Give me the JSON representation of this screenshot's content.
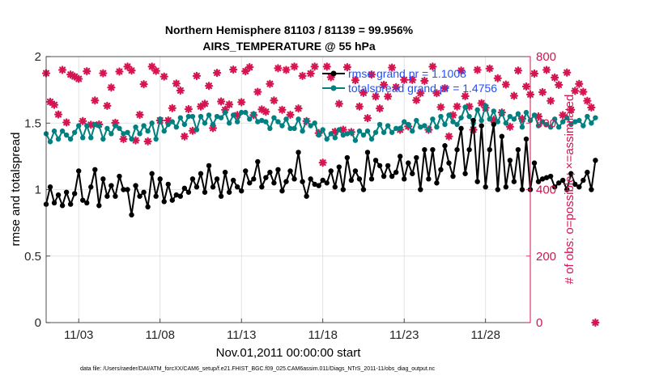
{
  "chart_data": {
    "type": "line",
    "title": "Northern Hemisphere 81103 / 81139 = 99.956%",
    "subtitle": "AIRS_TEMPERATURE @ 55 hPa",
    "xlabel": "Nov.01,2011 00:00:00 start",
    "ylabel": "rmse and totalspread",
    "y2label": "# of obs: o=possible; ×=assimilated",
    "x_ticks": [
      "11/03",
      "11/08",
      "11/13",
      "11/18",
      "11/23",
      "11/28"
    ],
    "x_tick_days": [
      3,
      8,
      13,
      18,
      23,
      28
    ],
    "xlim": [
      1.0,
      30.75
    ],
    "ylim": [
      0,
      2
    ],
    "y_ticks": [
      "0",
      "0.5",
      "1",
      "1.5",
      "2"
    ],
    "y2lim": [
      0,
      800
    ],
    "y2_ticks": [
      "0",
      "200",
      "400",
      "600",
      "800"
    ],
    "x_step_days": 0.25,
    "grid": true,
    "legend_position": "top-right",
    "colors": {
      "rmse": "#000000",
      "totalspread": "#008080",
      "obs": "#d6144f",
      "legend_text": "#1f4fff"
    },
    "series": [
      {
        "name": "rmse grand pr = 1.1008",
        "axis": "left",
        "values": [
          0.89,
          1.02,
          0.9,
          0.96,
          0.88,
          0.98,
          0.89,
          0.97,
          1.14,
          0.92,
          0.9,
          1.02,
          1.15,
          0.88,
          1.08,
          0.95,
          1.03,
          0.95,
          1.1,
          1.0,
          1.0,
          0.81,
          1.03,
          0.95,
          0.98,
          0.87,
          1.12,
          0.95,
          1.08,
          0.91,
          1.04,
          0.92,
          0.96,
          0.95,
          1.01,
          0.98,
          1.08,
          1.02,
          1.12,
          0.98,
          1.18,
          1.02,
          1.08,
          0.95,
          1.13,
          0.98,
          1.07,
          1.02,
          0.99,
          1.14,
          1.05,
          1.08,
          1.21,
          1.02,
          1.09,
          1.13,
          1.05,
          1.15,
          0.99,
          1.06,
          1.14,
          1.08,
          1.28,
          1.06,
          0.95,
          1.08,
          1.04,
          1.03,
          1.07,
          1.05,
          1.14,
          1.02,
          1.17,
          1.0,
          1.24,
          1.07,
          1.14,
          1.08,
          1.0,
          1.28,
          1.08,
          1.22,
          1.18,
          1.1,
          1.18,
          1.1,
          1.13,
          1.25,
          1.08,
          1.2,
          1.12,
          1.24,
          1.0,
          1.3,
          1.08,
          1.3,
          1.05,
          1.15,
          1.33,
          1.2,
          1.1,
          1.3,
          1.46,
          1.12,
          1.3,
          1.52,
          1.06,
          1.48,
          1.02,
          1.3,
          1.49,
          1.0,
          1.4,
          1.02,
          1.22,
          1.06,
          1.3,
          1.0,
          1.38,
          1.0,
          1.2,
          1.06,
          1.08,
          1.09,
          1.1,
          1.02,
          1.05,
          1.07,
          1.0,
          1.12,
          1.04,
          1.02,
          1.07,
          1.13,
          1.0,
          1.22
        ]
      },
      {
        "name": "totalspread grand pr = 1.4756",
        "axis": "left",
        "values": [
          1.42,
          1.36,
          1.44,
          1.38,
          1.44,
          1.41,
          1.38,
          1.43,
          1.48,
          1.39,
          1.48,
          1.39,
          1.49,
          1.48,
          1.38,
          1.46,
          1.42,
          1.48,
          1.46,
          1.42,
          1.43,
          1.38,
          1.47,
          1.42,
          1.48,
          1.44,
          1.5,
          1.38,
          1.53,
          1.44,
          1.49,
          1.51,
          1.47,
          1.54,
          1.49,
          1.55,
          1.55,
          1.45,
          1.55,
          1.5,
          1.56,
          1.49,
          1.55,
          1.54,
          1.58,
          1.5,
          1.56,
          1.51,
          1.58,
          1.58,
          1.53,
          1.57,
          1.51,
          1.52,
          1.51,
          1.46,
          1.54,
          1.51,
          1.48,
          1.53,
          1.46,
          1.46,
          1.53,
          1.44,
          1.52,
          1.48,
          1.5,
          1.41,
          1.45,
          1.38,
          1.42,
          1.39,
          1.45,
          1.41,
          1.42,
          1.43,
          1.37,
          1.44,
          1.41,
          1.44,
          1.38,
          1.43,
          1.49,
          1.43,
          1.48,
          1.43,
          1.46,
          1.46,
          1.51,
          1.49,
          1.44,
          1.52,
          1.47,
          1.48,
          1.45,
          1.53,
          1.47,
          1.55,
          1.49,
          1.56,
          1.51,
          1.49,
          1.54,
          1.62,
          1.55,
          1.5,
          1.6,
          1.52,
          1.63,
          1.53,
          1.59,
          1.51,
          1.58,
          1.5,
          1.55,
          1.53,
          1.57,
          1.47,
          1.58,
          1.52,
          1.56,
          1.48,
          1.51,
          1.49,
          1.47,
          1.53,
          1.47,
          1.51,
          1.54,
          1.49,
          1.51,
          1.52,
          1.48,
          1.55,
          1.5,
          1.54
        ]
      },
      {
        "name": "# of obs",
        "axis": "right",
        "values": [
          750,
          664,
          655,
          626,
          760,
          602,
          746,
          740,
          733,
          606,
          756,
          595,
          668,
          596,
          750,
          652,
          707,
          601,
          755,
          552,
          770,
          758,
          548,
          625,
          717,
          545,
          770,
          757,
          608,
          740,
          608,
          645,
          719,
          698,
          560,
          642,
          577,
          742,
          650,
          658,
          712,
          585,
          751,
          665,
          640,
          656,
          761,
          624,
          663,
          756,
          768,
          624,
          694,
          641,
          634,
          718,
          668,
          765,
          640,
          760,
          625,
          770,
          644,
          742,
          606,
          749,
          770,
          570,
          481,
          770,
          738,
          574,
          658,
          580,
          768,
          573,
          729,
          650,
          691,
          615,
          746,
          680,
          644,
          715,
          680,
          767,
          708,
          580,
          730,
          590,
          730,
          669,
          690,
          727,
          580,
          770,
          690,
          648,
          705,
          560,
          624,
          650,
          758,
          681,
          650,
          580,
          760,
          660,
          646,
          764,
          610,
          735,
          632,
          716,
          589,
          682,
          758,
          613,
          710,
          686,
          749,
          620,
          693,
          760,
          667,
          737,
          715,
          624,
          752,
          640,
          697,
          718,
          694,
          667,
          647,
          0
        ]
      }
    ]
  },
  "footer": {
    "data_file": "data file: /Users/raeder/DAI/ATM_forcXX/CAM6_setup/f.e21.FHIST_BGC.f09_025.CAM6assim.011/Diags_NTrS_2011-11/obs_diag_output.nc"
  }
}
